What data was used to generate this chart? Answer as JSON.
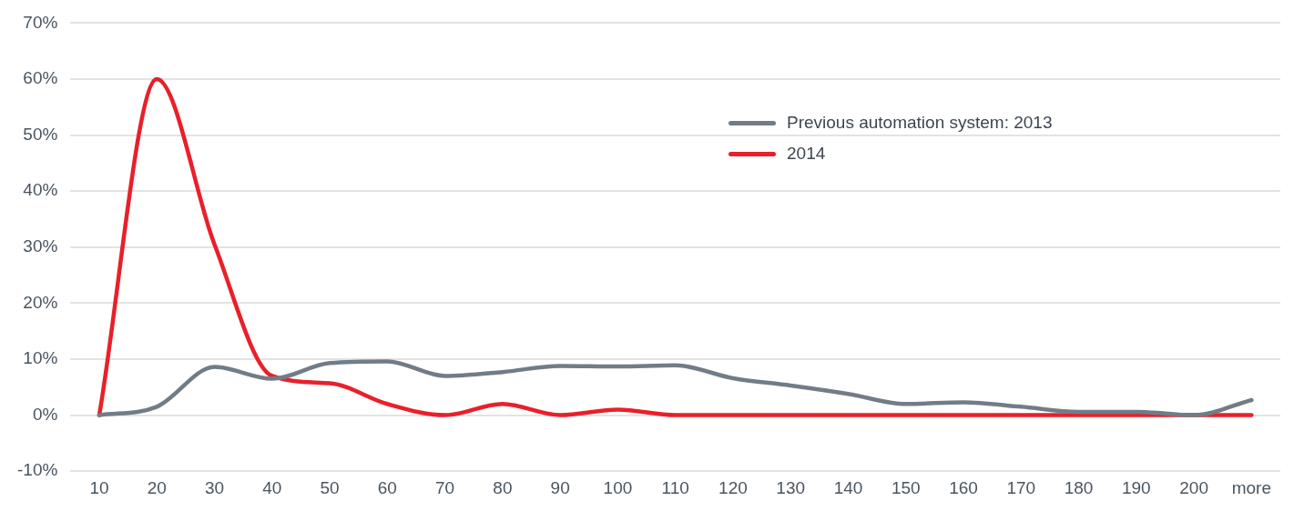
{
  "chart_data": {
    "type": "line",
    "categories": [
      "10",
      "20",
      "30",
      "40",
      "50",
      "60",
      "70",
      "80",
      "90",
      "100",
      "110",
      "120",
      "130",
      "140",
      "150",
      "160",
      "170",
      "180",
      "190",
      "200",
      "more"
    ],
    "series": [
      {
        "name": "Previous automation system: 2013",
        "color": "#717c87",
        "values": [
          0,
          1.5,
          8.6,
          6.5,
          9.3,
          9.6,
          7.0,
          7.7,
          8.8,
          8.7,
          8.9,
          6.6,
          5.3,
          3.8,
          2.0,
          2.3,
          1.5,
          0.6,
          0.6,
          0,
          2.7
        ]
      },
      {
        "name": "2014",
        "color": "#e8202a",
        "values": [
          0,
          60,
          30.5,
          7,
          5.7,
          2,
          0,
          2,
          0,
          1,
          0,
          0,
          0,
          0,
          0,
          0,
          0,
          0,
          0,
          0,
          0
        ]
      }
    ],
    "ylim": [
      -10,
      70
    ],
    "yticks": [
      {
        "value": -10,
        "label": "-10%"
      },
      {
        "value": 0,
        "label": "0%"
      },
      {
        "value": 10,
        "label": "10%"
      },
      {
        "value": 20,
        "label": "20%"
      },
      {
        "value": 30,
        "label": "30%"
      },
      {
        "value": 40,
        "label": "40%"
      },
      {
        "value": 50,
        "label": "50%"
      },
      {
        "value": 60,
        "label": "60%"
      },
      {
        "value": 70,
        "label": "70%"
      }
    ],
    "grid": "y",
    "legend": "top right",
    "marker": "none",
    "line_style": "solid"
  }
}
